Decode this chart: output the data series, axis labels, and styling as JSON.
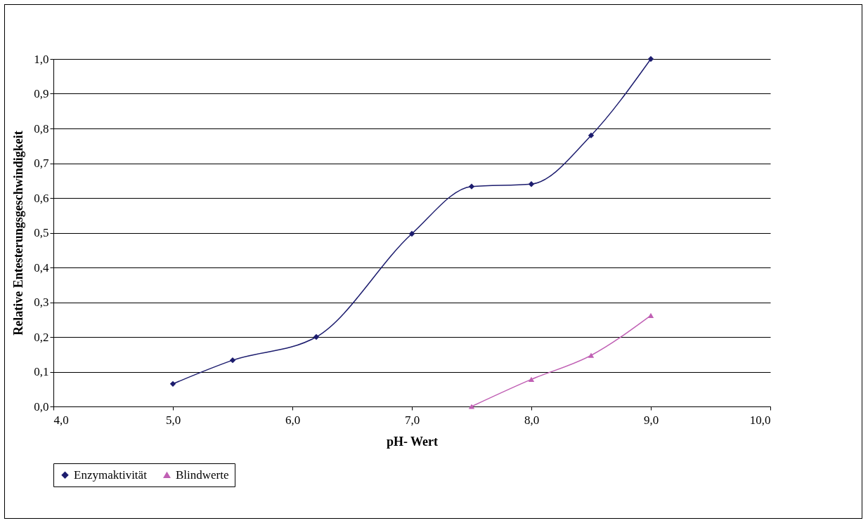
{
  "chart_data": {
    "type": "line",
    "xlabel": "pH- Wert",
    "ylabel": "Relative Entesterungsgeschwindigkeit",
    "xlim": [
      4,
      10
    ],
    "ylim": [
      0,
      1
    ],
    "xticks": [
      {
        "value": 4,
        "label": "4,0"
      },
      {
        "value": 5,
        "label": "5,0"
      },
      {
        "value": 6,
        "label": "6,0"
      },
      {
        "value": 7,
        "label": "7,0"
      },
      {
        "value": 8,
        "label": "8,0"
      },
      {
        "value": 9,
        "label": "9,0"
      },
      {
        "value": 10,
        "label": "10,0"
      }
    ],
    "yticks": [
      {
        "value": 0,
        "label": "0,0"
      },
      {
        "value": 0.1,
        "label": "0,1"
      },
      {
        "value": 0.2,
        "label": "0,2"
      },
      {
        "value": 0.3,
        "label": "0,3"
      },
      {
        "value": 0.4,
        "label": "0,4"
      },
      {
        "value": 0.5,
        "label": "0,5"
      },
      {
        "value": 0.6,
        "label": "0,6"
      },
      {
        "value": 0.7,
        "label": "0,7"
      },
      {
        "value": 0.8,
        "label": "0,8"
      },
      {
        "value": 0.9,
        "label": "0,9"
      },
      {
        "value": 1,
        "label": "1,0"
      }
    ],
    "grid": "y",
    "legend": "bottom",
    "series": [
      {
        "name": "Enzymaktivität",
        "color": "#1c1c6e",
        "marker": "diamond",
        "x": [
          5,
          5.5,
          6.2,
          7,
          7.5,
          8,
          8.5,
          9
        ],
        "values": [
          0.065,
          0.133,
          0.2,
          0.497,
          0.633,
          0.64,
          0.78,
          1.0
        ]
      },
      {
        "name": "Blindwerte",
        "color": "#c060b4",
        "marker": "triangle",
        "x": [
          7.5,
          8,
          8.5,
          9
        ],
        "values": [
          0,
          0.078,
          0.147,
          0.262
        ]
      }
    ]
  }
}
